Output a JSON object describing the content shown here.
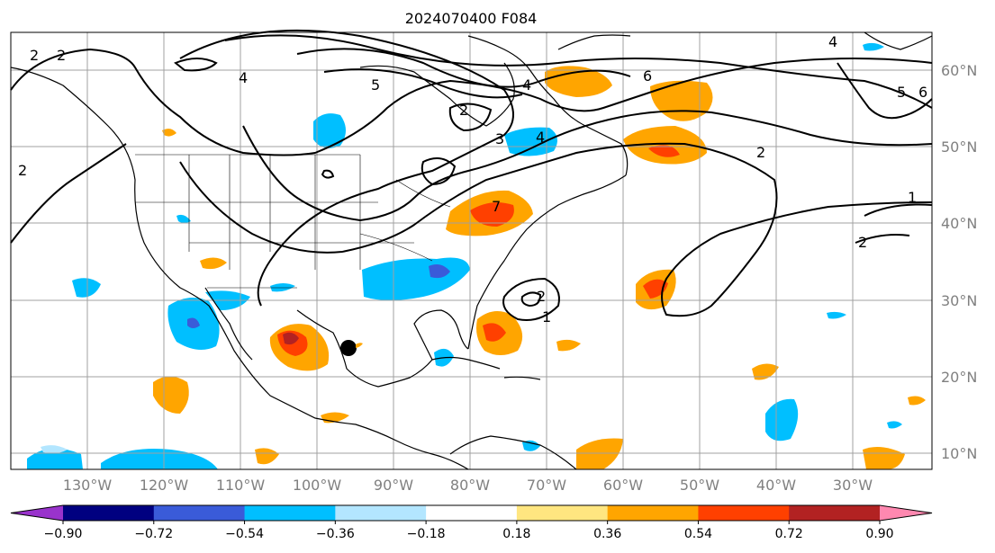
{
  "title": "2024070400 F084",
  "lat_labels": [
    "60°N",
    "50°N",
    "40°N",
    "30°N",
    "20°N",
    "10°N"
  ],
  "lon_labels": [
    "130°W",
    "120°W",
    "110°W",
    "100°W",
    "90°W",
    "80°W",
    "70°W",
    "60°W",
    "50°W",
    "40°W",
    "30°W"
  ],
  "colorbar": {
    "colors": [
      "#9933cc",
      "#000080",
      "#3a5bd9",
      "#00bfff",
      "#b3e6ff",
      "#ffffff",
      "#ffe680",
      "#ffa500",
      "#ff4000",
      "#b22222",
      "#ff88b0"
    ],
    "tick_labels": [
      "−0.90",
      "−0.72",
      "−0.54",
      "−0.36",
      "−0.18",
      "0.18",
      "0.36",
      "0.54",
      "0.72",
      "0.90"
    ]
  },
  "contour_labels": [
    "2",
    "2",
    "2",
    "4",
    "5",
    "4",
    "6",
    "2",
    "3",
    "4",
    "2",
    "1",
    "2",
    "2",
    "1",
    "5",
    "6",
    "4",
    "7"
  ],
  "storm_marker": "black-dot"
}
